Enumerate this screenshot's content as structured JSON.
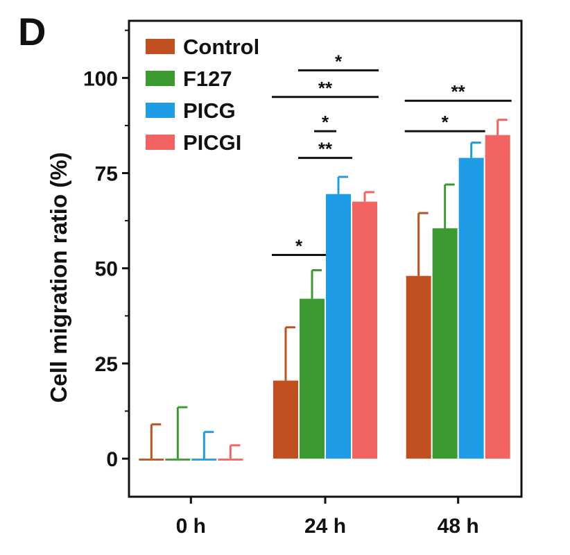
{
  "panel_label": "D",
  "chart_data": {
    "type": "bar",
    "categories": [
      "0 h",
      "24 h",
      "48 h"
    ],
    "ylabel": "Cell migration ratio (%)",
    "xlabel": "",
    "ylim": [
      -10,
      115
    ],
    "yticks": [
      0,
      25,
      50,
      75,
      100
    ],
    "grid": false,
    "legend_position": "top-left",
    "series": [
      {
        "name": "Control",
        "color": "#C0501F",
        "values": [
          -0.5,
          20.5,
          48
        ],
        "errors": [
          9.5,
          14,
          16.5
        ]
      },
      {
        "name": "F127",
        "color": "#3B9B30",
        "values": [
          -0.5,
          42,
          60.5
        ],
        "errors": [
          14,
          7.5,
          11.5
        ]
      },
      {
        "name": "PICG",
        "color": "#1E9CE6",
        "values": [
          -0.5,
          69.5,
          79
        ],
        "errors": [
          7.5,
          4.5,
          4
        ]
      },
      {
        "name": "PICGI",
        "color": "#F26462",
        "values": [
          -0.5,
          67.5,
          85
        ],
        "errors": [
          4,
          2.5,
          4
        ]
      }
    ],
    "annotations": [
      {
        "label": "*",
        "category": "24 h",
        "from": "Control",
        "to": "F127",
        "y": 53.5
      },
      {
        "label": "**",
        "category": "24 h",
        "from": "F127",
        "to": "PICG",
        "y": 79
      },
      {
        "label": "*",
        "category": "24 h",
        "from": "F127",
        "to": "PICG",
        "y": 86,
        "short": true
      },
      {
        "label": "**",
        "category": "24 h",
        "from": "Control",
        "to": "PICGI",
        "y": 95
      },
      {
        "label": "*",
        "category": "24 h",
        "from": "F127",
        "to": "PICGI",
        "y": 102
      },
      {
        "label": "*",
        "category": "48 h",
        "from": "Control",
        "to": "PICG",
        "y": 86
      },
      {
        "label": "**",
        "category": "48 h",
        "from": "Control",
        "to": "PICGI",
        "y": 94
      }
    ]
  }
}
